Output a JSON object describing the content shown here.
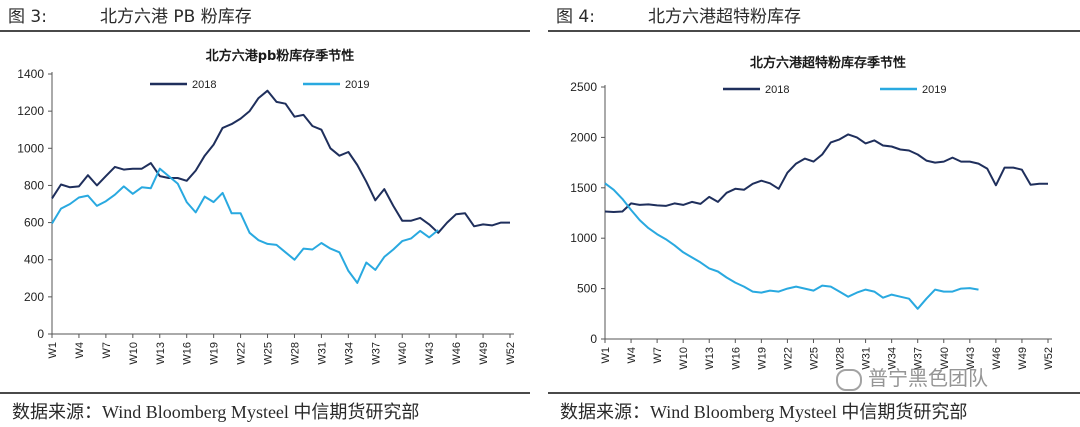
{
  "figures": [
    {
      "label": "图 3:",
      "caption": "北方六港 PB 粉库存",
      "source": "数据来源：Wind Bloomberg Mysteel 中信期货研究部"
    },
    {
      "label": "图 4:",
      "caption": "北方六港超特粉库存",
      "source": "数据来源：Wind Bloomberg Mysteel 中信期货研究部"
    }
  ],
  "watermark": "普宁黑色团队",
  "colors": {
    "s2018": "#1f2f5c",
    "s2019": "#29a9e0",
    "axis": "#555555",
    "rule": "#4a4a4a"
  },
  "chart_data": [
    {
      "type": "line",
      "title": "北方六港pb粉库存季节性",
      "xlabel": "",
      "ylabel": "",
      "ylim": [
        0,
        1400
      ],
      "yticks": [
        0,
        200,
        400,
        600,
        800,
        1000,
        1200,
        1400
      ],
      "x_count": 52,
      "xtick_labels": [
        "W1",
        "W4",
        "W7",
        "W10",
        "W13",
        "W16",
        "W19",
        "W22",
        "W25",
        "W28",
        "W31",
        "W34",
        "W37",
        "W40",
        "W43",
        "W46",
        "W49",
        "W52"
      ],
      "legend_position": "top",
      "series": [
        {
          "name": "2018",
          "values": [
            730,
            805,
            790,
            795,
            855,
            800,
            850,
            900,
            885,
            890,
            890,
            920,
            850,
            840,
            840,
            825,
            880,
            960,
            1020,
            1110,
            1130,
            1160,
            1200,
            1270,
            1310,
            1250,
            1240,
            1170,
            1180,
            1120,
            1100,
            1000,
            960,
            980,
            910,
            820,
            720,
            780,
            690,
            610,
            610,
            625,
            590,
            545,
            600,
            645,
            650,
            580,
            590,
            585,
            600,
            600
          ]
        },
        {
          "name": "2019",
          "values": [
            595,
            675,
            700,
            735,
            745,
            690,
            715,
            750,
            795,
            755,
            790,
            785,
            890,
            850,
            810,
            710,
            655,
            740,
            710,
            760,
            650,
            650,
            545,
            505,
            485,
            480,
            440,
            400,
            460,
            455,
            490,
            460,
            440,
            340,
            275,
            385,
            345,
            415,
            455,
            500,
            515,
            555,
            520,
            560
          ]
        }
      ]
    },
    {
      "type": "line",
      "title": "北方六港超特粉库存季节性",
      "xlabel": "",
      "ylabel": "",
      "ylim": [
        0,
        2500
      ],
      "yticks": [
        0,
        500,
        1000,
        1500,
        2000,
        2500
      ],
      "x_count": 52,
      "xtick_labels": [
        "W1",
        "W4",
        "W7",
        "W10",
        "W13",
        "W16",
        "W19",
        "W22",
        "W25",
        "W28",
        "W31",
        "W34",
        "W37",
        "W40",
        "W43",
        "W46",
        "W49",
        "W52"
      ],
      "legend_position": "top",
      "series": [
        {
          "name": "2018",
          "values": [
            1265,
            1260,
            1265,
            1345,
            1330,
            1335,
            1325,
            1320,
            1345,
            1330,
            1360,
            1340,
            1410,
            1360,
            1450,
            1490,
            1480,
            1540,
            1570,
            1545,
            1490,
            1650,
            1740,
            1790,
            1760,
            1830,
            1950,
            1980,
            2030,
            2000,
            1940,
            1970,
            1920,
            1910,
            1880,
            1870,
            1830,
            1770,
            1750,
            1760,
            1800,
            1760,
            1760,
            1740,
            1690,
            1525,
            1700,
            1700,
            1680,
            1530,
            1540,
            1540
          ]
        },
        {
          "name": "2019",
          "values": [
            1545,
            1480,
            1390,
            1280,
            1180,
            1100,
            1040,
            990,
            930,
            860,
            810,
            760,
            700,
            670,
            610,
            560,
            520,
            470,
            460,
            480,
            470,
            500,
            520,
            500,
            480,
            530,
            520,
            470,
            420,
            460,
            490,
            470,
            410,
            440,
            420,
            400,
            300,
            400,
            490,
            470,
            470,
            500,
            505,
            490
          ]
        }
      ]
    }
  ]
}
